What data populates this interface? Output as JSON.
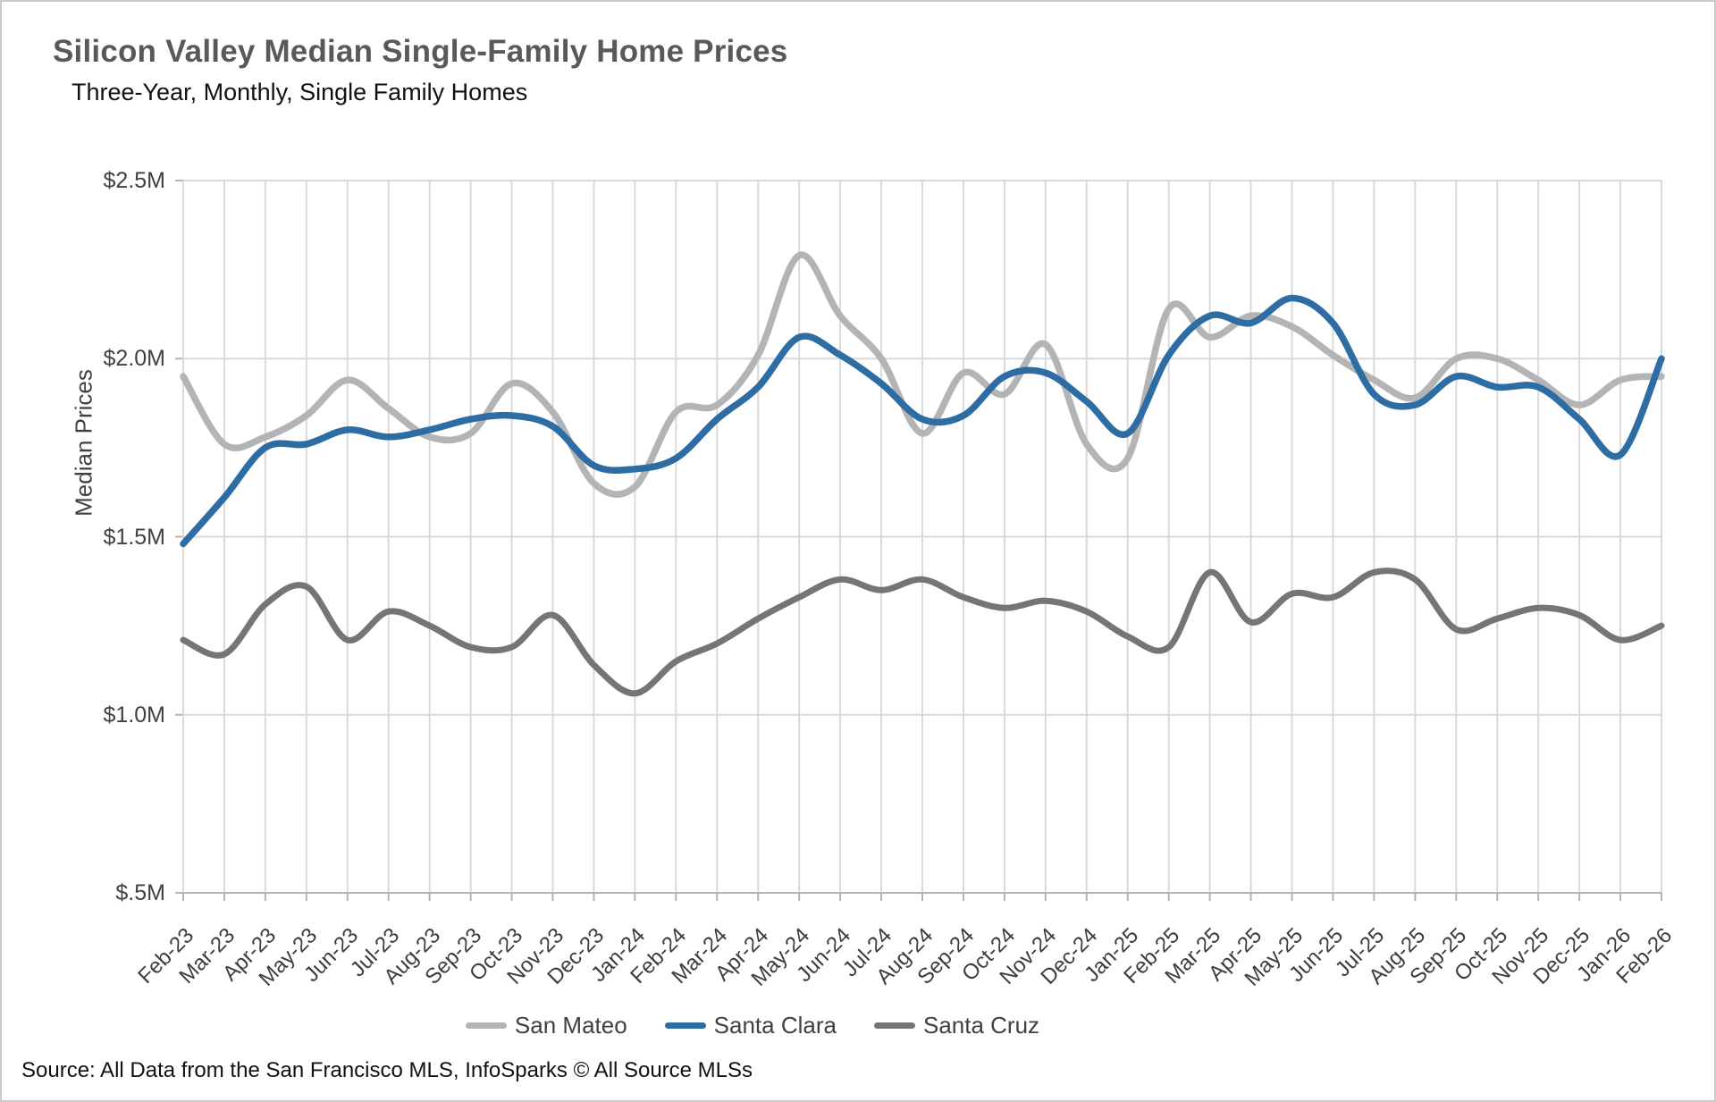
{
  "header": {
    "title": "Silicon Valley Median Single-Family Home Prices",
    "subtitle": "Three-Year, Monthly, Single Family Homes"
  },
  "y_axis": {
    "title": "Median Prices",
    "tick_labels": [
      "$2.5M",
      "$2.0M",
      "$1.5M",
      "$1.0M",
      "$.5M"
    ],
    "tick_values": [
      2.5,
      2.0,
      1.5,
      1.0,
      0.5
    ]
  },
  "chart_data": {
    "type": "line",
    "title": "Silicon Valley Median Single-Family Home Prices",
    "subtitle": "Three-Year, Monthly, Single Family Homes",
    "xlabel": "",
    "ylabel": "Median Prices",
    "ylim": [
      0.5,
      2.5
    ],
    "y_unit": "$M",
    "grid": true,
    "smooth": true,
    "legend_position": "bottom",
    "categories": [
      "Feb-23",
      "Mar-23",
      "Apr-23",
      "May-23",
      "Jun-23",
      "Jul-23",
      "Aug-23",
      "Sep-23",
      "Oct-23",
      "Nov-23",
      "Dec-23",
      "Jan-24",
      "Feb-24",
      "Mar-24",
      "Apr-24",
      "May-24",
      "Jun-24",
      "Jul-24",
      "Aug-24",
      "Sep-24",
      "Oct-24",
      "Nov-24",
      "Dec-24",
      "Jan-25",
      "Feb-25",
      "Mar-25",
      "Apr-25",
      "May-25",
      "Jun-25",
      "Jul-25",
      "Aug-25",
      "Sep-25",
      "Oct-25",
      "Nov-25",
      "Dec-25",
      "Jan-26",
      "Feb-26"
    ],
    "series": [
      {
        "name": "San Mateo",
        "color": "#b3b4b6",
        "stroke_width": 7.5,
        "values": [
          1.95,
          1.76,
          1.78,
          1.84,
          1.94,
          1.86,
          1.78,
          1.79,
          1.93,
          1.85,
          1.65,
          1.64,
          1.85,
          1.87,
          2.01,
          2.29,
          2.12,
          2.0,
          1.79,
          1.96,
          1.9,
          2.04,
          1.76,
          1.72,
          2.14,
          2.06,
          2.12,
          2.09,
          2.01,
          1.94,
          1.89,
          2.0,
          2.0,
          1.94,
          1.87,
          1.94,
          1.95
        ]
      },
      {
        "name": "Santa Clara",
        "color": "#2e6da4",
        "stroke_width": 7.5,
        "values": [
          1.48,
          1.61,
          1.75,
          1.76,
          1.8,
          1.78,
          1.8,
          1.83,
          1.84,
          1.81,
          1.7,
          1.69,
          1.72,
          1.83,
          1.92,
          2.06,
          2.01,
          1.93,
          1.83,
          1.84,
          1.95,
          1.96,
          1.88,
          1.79,
          2.01,
          2.12,
          2.1,
          2.17,
          2.1,
          1.9,
          1.87,
          1.95,
          1.92,
          1.92,
          1.83,
          1.73,
          2.0
        ]
      },
      {
        "name": "Santa Cruz",
        "color": "#737577",
        "stroke_width": 7,
        "values": [
          1.21,
          1.17,
          1.31,
          1.36,
          1.21,
          1.29,
          1.25,
          1.19,
          1.19,
          1.28,
          1.14,
          1.06,
          1.15,
          1.2,
          1.27,
          1.33,
          1.38,
          1.35,
          1.38,
          1.33,
          1.3,
          1.32,
          1.29,
          1.22,
          1.19,
          1.4,
          1.26,
          1.34,
          1.33,
          1.4,
          1.38,
          1.24,
          1.27,
          1.3,
          1.28,
          1.21,
          1.25
        ]
      }
    ]
  },
  "legend": {
    "items": [
      {
        "label": "San Mateo",
        "color": "#b3b4b6"
      },
      {
        "label": "Santa Clara",
        "color": "#2e6da4"
      },
      {
        "label": "Santa Cruz",
        "color": "#737577"
      }
    ]
  },
  "footer": {
    "source": "Source: All Data from the San Francisco MLS, InfoSparks © All Source MLSs"
  },
  "colors": {
    "grid": "#d9d9d9",
    "axis": "#b3b3b3",
    "title": "#595959",
    "text": "#111111",
    "axis_text": "#404040"
  }
}
